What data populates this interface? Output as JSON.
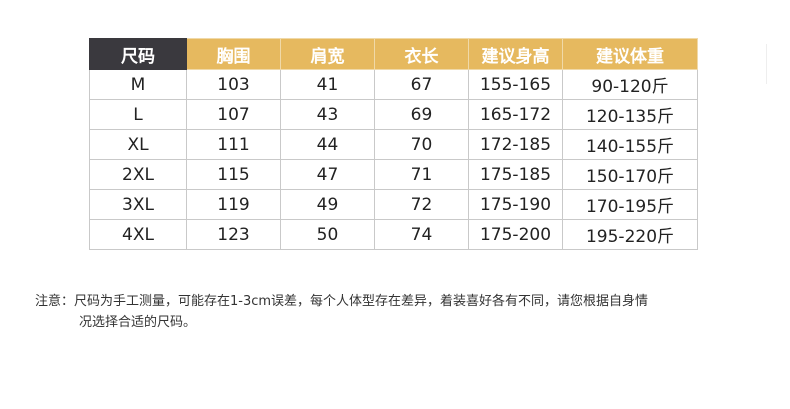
{
  "table": {
    "headers": [
      "尺码",
      "胸围",
      "肩宽",
      "衣长",
      "建议身高",
      "建议体重"
    ],
    "rows": [
      [
        "M",
        "103",
        "41",
        "67",
        "155-165",
        "90-120斤"
      ],
      [
        "L",
        "107",
        "43",
        "69",
        "165-172",
        "120-135斤"
      ],
      [
        "XL",
        "111",
        "44",
        "70",
        "172-185",
        "140-155斤"
      ],
      [
        "2XL",
        "115",
        "47",
        "71",
        "175-185",
        "150-170斤"
      ],
      [
        "3XL",
        "119",
        "49",
        "72",
        "175-190",
        "170-195斤"
      ],
      [
        "4XL",
        "123",
        "50",
        "74",
        "175-200",
        "195-220斤"
      ]
    ]
  },
  "note": {
    "line1": "注意：尺码为手工测量，可能存在1-3cm误差，每个人体型存在差异，着装喜好各有不同，请您根据自身情",
    "line2": "况选择合适的尺码。"
  },
  "colors": {
    "header_dark": "#3a393e",
    "header_gold": "#e6b95f"
  }
}
